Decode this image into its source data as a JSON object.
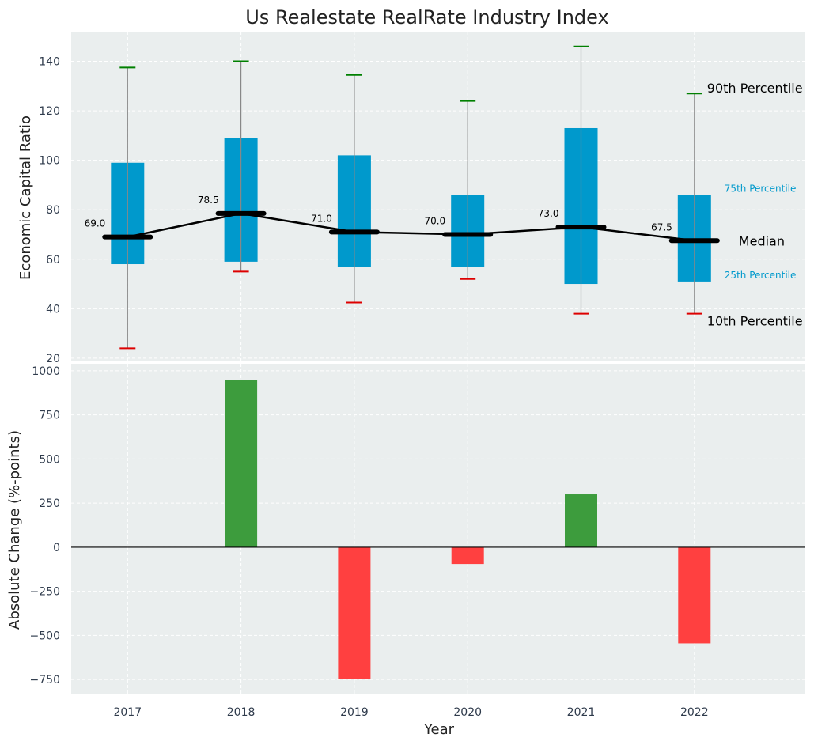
{
  "chart_data": [
    {
      "type": "box",
      "title": "Us Realestate RealRate Industry Index",
      "ylabel": "Economic Capital Ratio",
      "xlabel": "",
      "categories": [
        "2017",
        "2018",
        "2019",
        "2020",
        "2021",
        "2022"
      ],
      "p10": [
        24,
        55,
        42.5,
        52,
        38,
        38
      ],
      "p25": [
        58,
        59,
        57,
        57,
        50,
        51
      ],
      "median": [
        69.0,
        78.5,
        71.0,
        70.0,
        73.0,
        67.5
      ],
      "p75": [
        99,
        109,
        102,
        86,
        113,
        86
      ],
      "p90": [
        137.5,
        140,
        134.5,
        124,
        146,
        127
      ],
      "median_labels": [
        "69.0",
        "78.5",
        "71.0",
        "70.0",
        "73.0",
        "67.5"
      ],
      "ylim": [
        19,
        152
      ],
      "yticks": [
        20,
        40,
        60,
        80,
        100,
        120,
        140
      ],
      "grid": true,
      "annotations": {
        "p90": "90th Percentile",
        "p75": "75th Percentile",
        "median": "Median",
        "p25": "25th Percentile",
        "p10": "10th Percentile"
      },
      "colors": {
        "box": "#0099cc",
        "median_line": "#000000",
        "whisker": "#888888",
        "p90_cap": "#008000",
        "p10_cap": "#dd0000",
        "background": "#eaeeee"
      }
    },
    {
      "type": "bar",
      "ylabel": "Absolute Change (%-points)",
      "xlabel": "Year",
      "categories": [
        "2017",
        "2018",
        "2019",
        "2020",
        "2021",
        "2022"
      ],
      "values": [
        0,
        950,
        -745,
        -95,
        300,
        -545
      ],
      "ylim": [
        -830,
        1040
      ],
      "yticks": [
        -750,
        -500,
        -250,
        0,
        250,
        500,
        750,
        1000
      ],
      "ytick_labels": [
        "−750",
        "−500",
        "−250",
        "0",
        "250",
        "500",
        "750",
        "1000"
      ],
      "grid": true,
      "colors": {
        "positive": "#3d9c3d",
        "negative": "#ff4040",
        "background": "#eaeeee"
      }
    }
  ]
}
